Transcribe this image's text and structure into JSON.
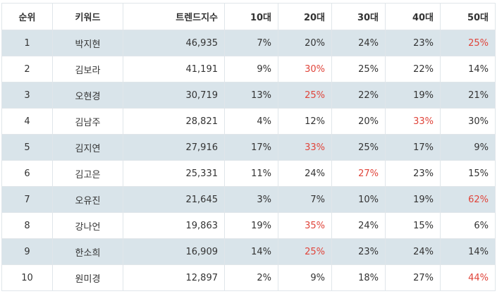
{
  "table": {
    "headers": [
      "순위",
      "키워드",
      "트렌드지수",
      "10대",
      "20대",
      "30대",
      "40대",
      "50대"
    ],
    "rows": [
      {
        "rank": "1",
        "keyword": "박지현",
        "trend": "46,935",
        "a10": "7%",
        "a20": "20%",
        "a30": "24%",
        "a40": "23%",
        "a50": "25%",
        "top": "a50"
      },
      {
        "rank": "2",
        "keyword": "김보라",
        "trend": "41,191",
        "a10": "9%",
        "a20": "30%",
        "a30": "25%",
        "a40": "22%",
        "a50": "14%",
        "top": "a20"
      },
      {
        "rank": "3",
        "keyword": "오현경",
        "trend": "30,719",
        "a10": "13%",
        "a20": "25%",
        "a30": "22%",
        "a40": "19%",
        "a50": "21%",
        "top": "a20"
      },
      {
        "rank": "4",
        "keyword": "김남주",
        "trend": "28,821",
        "a10": "4%",
        "a20": "12%",
        "a30": "20%",
        "a40": "33%",
        "a50": "30%",
        "top": "a40"
      },
      {
        "rank": "5",
        "keyword": "김지연",
        "trend": "27,916",
        "a10": "17%",
        "a20": "33%",
        "a30": "25%",
        "a40": "17%",
        "a50": "9%",
        "top": "a20"
      },
      {
        "rank": "6",
        "keyword": "김고은",
        "trend": "25,331",
        "a10": "11%",
        "a20": "24%",
        "a30": "27%",
        "a40": "23%",
        "a50": "15%",
        "top": "a30"
      },
      {
        "rank": "7",
        "keyword": "오유진",
        "trend": "21,645",
        "a10": "3%",
        "a20": "7%",
        "a30": "10%",
        "a40": "19%",
        "a50": "62%",
        "top": "a50"
      },
      {
        "rank": "8",
        "keyword": "강나언",
        "trend": "19,863",
        "a10": "19%",
        "a20": "35%",
        "a30": "24%",
        "a40": "15%",
        "a50": "6%",
        "top": "a20"
      },
      {
        "rank": "9",
        "keyword": "한소희",
        "trend": "16,909",
        "a10": "14%",
        "a20": "25%",
        "a30": "23%",
        "a40": "24%",
        "a50": "14%",
        "top": "a20"
      },
      {
        "rank": "10",
        "keyword": "원미경",
        "trend": "12,897",
        "a10": "2%",
        "a20": "9%",
        "a30": "18%",
        "a40": "27%",
        "a50": "44%",
        "top": "a50"
      }
    ]
  },
  "colors": {
    "highlight": "#e0443a",
    "stripe": "#d9e4ea",
    "border": "#e0e6ea",
    "text": "#333333"
  }
}
